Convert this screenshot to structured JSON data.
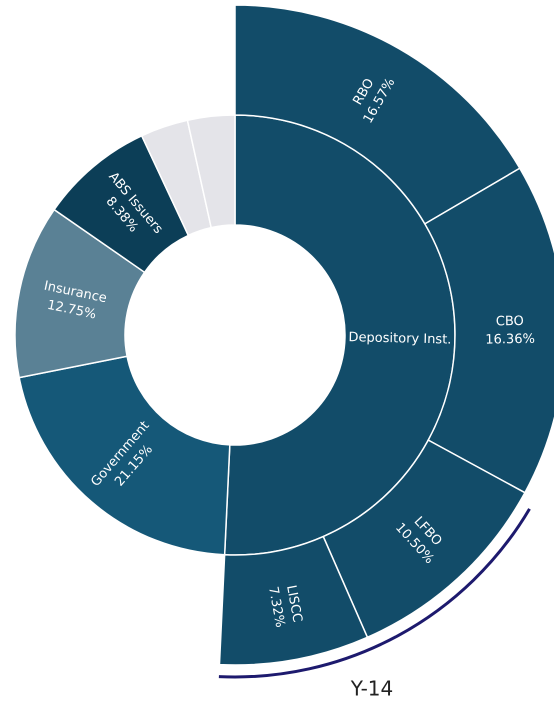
{
  "chart_data": {
    "type": "sunburst",
    "inner": {
      "categories": [
        "Depository Inst.",
        "Government",
        "Insurance",
        "ABS Issuers",
        null,
        null
      ],
      "values": [
        50.75,
        21.15,
        12.75,
        8.38,
        3.5,
        3.47
      ],
      "value_labels": [
        null,
        "21.15%",
        "12.75%",
        "8.38%",
        null,
        null
      ],
      "colors": [
        "#124c69",
        "#155878",
        "#5a8195",
        "#0c3e57",
        "#e4e4e9",
        "#e4e4e9"
      ]
    },
    "outer": {
      "parent": "Depository Inst.",
      "categories": [
        "RBO",
        "CBO",
        "LFBO",
        "LISCC"
      ],
      "values": [
        16.57,
        16.36,
        10.5,
        7.32
      ],
      "value_labels": [
        "16.57%",
        "16.36%",
        "10.50%",
        "7.32%"
      ],
      "color": "#124c69"
    },
    "annotation": {
      "text": "Y-14",
      "color": "#1d1a6e"
    }
  }
}
